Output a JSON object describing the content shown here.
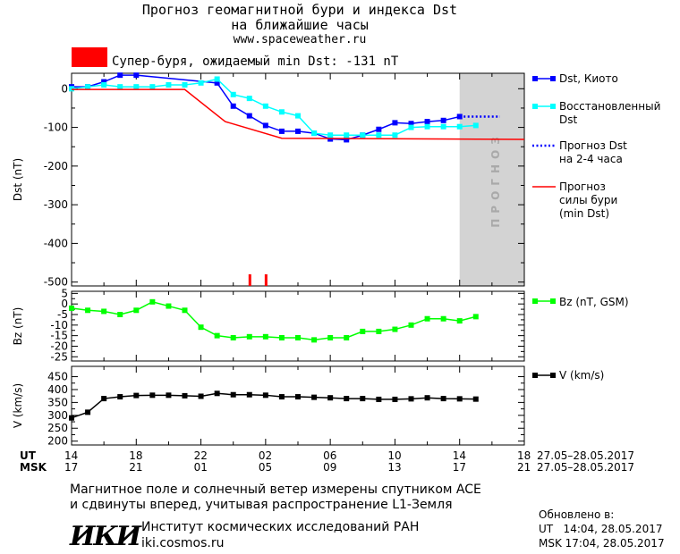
{
  "header": {
    "title_line1": "Прогноз геомагнитной бури и индекса Dst",
    "title_line2": "на ближайшие часы",
    "url": "www.spaceweather.ru",
    "storm_color": "#ff0000",
    "storm_label": "Супер-буря, ожидаемый min Dst: -131 nT"
  },
  "forecast_band_label": "ПРОГНОЗ",
  "legend": {
    "dst_kyoto": "Dst, Киото",
    "dst_restored": "Восстановленный\nDst",
    "dst_forecast": "Прогноз Dst\nна 2-4 часа",
    "storm_forecast": "Прогноз\nсилы бури\n(min Dst)",
    "bz": "Bz (nT, GSM)",
    "v": "V (km/s)"
  },
  "time_axis": {
    "ut_label": "UT",
    "msk_label": "MSK",
    "ut_ticks": [
      "14",
      "18",
      "22",
      "02",
      "06",
      "10",
      "14",
      "18"
    ],
    "msk_ticks": [
      "17",
      "21",
      "01",
      "05",
      "09",
      "13",
      "17",
      "21"
    ],
    "date_range_ut": "27.05–28.05.2017",
    "date_range_msk": "27.05–28.05.2017"
  },
  "footer": {
    "note_line1": "Магнитное поле и солнечный ветер измерены спутником ACE",
    "note_line2": "и сдвинуты вперед, учитывая распространение L1-Земля",
    "logo_text": "ИКИ",
    "institute": "Институт космических исследований РАН",
    "site": "iki.cosmos.ru",
    "updated_label": "Обновлено в:",
    "updated_ut": "UT   14:04, 28.05.2017",
    "updated_msk": "MSK 17:04, 28.05.2017"
  },
  "chart_data": [
    {
      "type": "line",
      "ylabel": "Dst (nT)",
      "ylim": [
        -510,
        40
      ],
      "yticks": [
        0,
        -100,
        -200,
        -300,
        -400,
        -500
      ],
      "x_unit": "hours since 14 UT 27.05.2017",
      "xlim": [
        0,
        28
      ],
      "forecast_band_x": [
        24,
        28
      ],
      "series": [
        {
          "name": "Dst, Киото",
          "color": "#0000ff",
          "marker": "square",
          "x": [
            0,
            1,
            2,
            3,
            4,
            5,
            6,
            7,
            8,
            9,
            10,
            11,
            12,
            13,
            14,
            15,
            16,
            17,
            18,
            19,
            20,
            21,
            22,
            23,
            24
          ],
          "y": [
            5,
            5,
            18,
            35,
            35,
            null,
            null,
            null,
            null,
            15,
            -45,
            -70,
            -95,
            -110,
            -110,
            -115,
            -130,
            -132,
            -120,
            -105,
            -88,
            -90,
            -85,
            -82,
            -72
          ]
        },
        {
          "name": "Восстановленный Dst",
          "color": "#00ffff",
          "marker": "square",
          "x": [
            0,
            1,
            2,
            3,
            4,
            5,
            6,
            7,
            8,
            9,
            10,
            11,
            12,
            13,
            14,
            15,
            16,
            17,
            18,
            19,
            20,
            21,
            22,
            23,
            24,
            25
          ],
          "y": [
            0,
            5,
            10,
            5,
            5,
            5,
            10,
            10,
            15,
            25,
            -15,
            -25,
            -45,
            -60,
            -70,
            -115,
            -120,
            -120,
            -120,
            -120,
            -120,
            -100,
            -98,
            -98,
            -98,
            -95
          ]
        },
        {
          "name": "Прогноз Dst на 2-4 часа",
          "color": "#0000ff",
          "dash": "dotted",
          "x": [
            24,
            26.5
          ],
          "y": [
            -72,
            -72
          ]
        },
        {
          "name": "Прогноз силы бури (min Dst)",
          "color": "#ff0000",
          "x": [
            0,
            7,
            9.5,
            13,
            28
          ],
          "y": [
            -2,
            -2,
            -85,
            -128,
            -131
          ]
        }
      ],
      "markers": [
        {
          "x": 11,
          "color": "#ff0000"
        },
        {
          "x": 12,
          "color": "#ff0000"
        }
      ]
    },
    {
      "type": "line",
      "ylabel": "Bz (nT)",
      "ylim": [
        -27,
        6
      ],
      "yticks": [
        5,
        0,
        -5,
        -10,
        -15,
        -20,
        -25
      ],
      "series": [
        {
          "name": "Bz (nT, GSM)",
          "color": "#00ff00",
          "marker": "square",
          "x": [
            0,
            1,
            2,
            3,
            4,
            5,
            6,
            7,
            8,
            9,
            10,
            11,
            12,
            13,
            14,
            15,
            16,
            17,
            18,
            19,
            20,
            21,
            22,
            23,
            24,
            25
          ],
          "y": [
            -2,
            -3,
            -3.5,
            -5,
            -3,
            1,
            -1,
            -3,
            -11,
            -15,
            -16,
            -15.5,
            -15.5,
            -16,
            -16,
            -17,
            -16,
            -16,
            -13,
            -13,
            -12,
            -10,
            -7,
            -7,
            -8,
            -6
          ]
        }
      ]
    },
    {
      "type": "line",
      "ylabel": "V (km/s)",
      "ylim": [
        185,
        490
      ],
      "yticks": [
        450,
        400,
        350,
        300,
        250,
        200
      ],
      "series": [
        {
          "name": "V (km/s)",
          "color": "#000000",
          "marker": "square",
          "x": [
            0,
            1,
            2,
            3,
            4,
            5,
            6,
            7,
            8,
            9,
            10,
            11,
            12,
            13,
            14,
            15,
            16,
            17,
            18,
            19,
            20,
            21,
            22,
            23,
            24,
            25
          ],
          "y": [
            290,
            312,
            365,
            372,
            377,
            378,
            378,
            376,
            374,
            385,
            380,
            380,
            378,
            372,
            372,
            370,
            368,
            365,
            365,
            362,
            362,
            364,
            368,
            365,
            364,
            363
          ]
        }
      ]
    }
  ]
}
